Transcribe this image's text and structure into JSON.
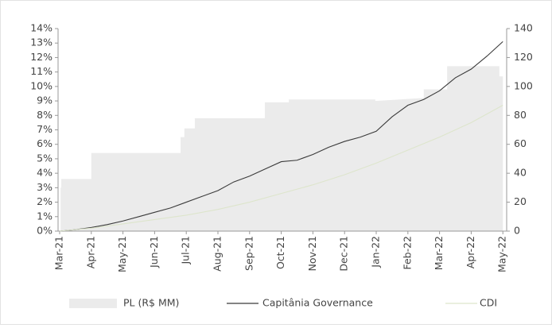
{
  "chart_data": {
    "type": "line",
    "xlim": [
      -0.05,
      14.12
    ],
    "xticks": [
      {
        "value": 0,
        "label": "Mar-21"
      },
      {
        "value": 1,
        "label": "Apr-21"
      },
      {
        "value": 2,
        "label": "May-21"
      },
      {
        "value": 3,
        "label": "Jun-21"
      },
      {
        "value": 4,
        "label": "Jul-21"
      },
      {
        "value": 5,
        "label": "Aug-21"
      },
      {
        "value": 6,
        "label": "Sep-21"
      },
      {
        "value": 7,
        "label": "Oct-21"
      },
      {
        "value": 8,
        "label": "Nov-21"
      },
      {
        "value": 9,
        "label": "Dec-21"
      },
      {
        "value": 10,
        "label": "Jan-22"
      },
      {
        "value": 11,
        "label": "Feb-22"
      },
      {
        "value": 12,
        "label": "Mar-22"
      },
      {
        "value": 13,
        "label": "Apr-22"
      },
      {
        "value": 14,
        "label": "May-22"
      }
    ],
    "ylim": [
      0,
      14
    ],
    "yticks": [
      {
        "value": 0,
        "label": "0%"
      },
      {
        "value": 1,
        "label": "1%"
      },
      {
        "value": 2,
        "label": "2%"
      },
      {
        "value": 3,
        "label": "3%"
      },
      {
        "value": 4,
        "label": "4%"
      },
      {
        "value": 5,
        "label": "5%"
      },
      {
        "value": 6,
        "label": "6%"
      },
      {
        "value": 7,
        "label": "7%"
      },
      {
        "value": 8,
        "label": "8%"
      },
      {
        "value": 9,
        "label": "9%"
      },
      {
        "value": 10,
        "label": "10%"
      },
      {
        "value": 11,
        "label": "11%"
      },
      {
        "value": 12,
        "label": "12%"
      },
      {
        "value": 13,
        "label": "13%"
      },
      {
        "value": 14,
        "label": "14%"
      }
    ],
    "y2lim": [
      0,
      140
    ],
    "y2ticks": [
      0,
      20,
      40,
      60,
      80,
      100,
      120,
      140
    ],
    "series": [
      {
        "name": "PL (R$ MM)",
        "kind": "area",
        "axis": "y2",
        "color": "#ebebeb",
        "x": [
          0,
          0.03,
          0.03,
          0.05,
          0.05,
          1.0,
          1.0,
          3.82,
          3.82,
          3.94,
          3.94,
          4.27,
          4.27,
          6.48,
          6.48,
          7.24,
          7.24,
          9.97,
          9.97,
          11.5,
          11.5,
          12.24,
          12.24,
          13.89,
          13.89,
          14
        ],
        "values": [
          0,
          0,
          30,
          30,
          36,
          36,
          54,
          54,
          65,
          65,
          71,
          71,
          78,
          78,
          89,
          89,
          91,
          91,
          90,
          92,
          98,
          98,
          114,
          114,
          107,
          107
        ]
      },
      {
        "name": "Capitânia Governance",
        "kind": "line",
        "color": "#3a3a3a",
        "x": [
          0,
          0.5,
          1,
          1.5,
          2,
          2.5,
          3,
          3.5,
          4,
          4.5,
          5,
          5.5,
          6,
          6.5,
          7,
          7.5,
          8,
          8.5,
          9,
          9.5,
          10,
          10.5,
          11,
          11.5,
          12,
          12.5,
          13,
          13.5,
          14
        ],
        "values": [
          0,
          0.1,
          0.25,
          0.45,
          0.7,
          1.0,
          1.3,
          1.6,
          2.0,
          2.4,
          2.8,
          3.4,
          3.8,
          4.3,
          4.8,
          4.9,
          5.3,
          5.8,
          6.2,
          6.5,
          6.9,
          7.9,
          8.7,
          9.1,
          9.7,
          10.6,
          11.2,
          12.1,
          13.1
        ]
      },
      {
        "name": "CDI",
        "kind": "line",
        "color": "#dde5cc",
        "x": [
          0,
          1,
          2,
          3,
          4,
          5,
          6,
          7,
          8,
          9,
          10,
          11,
          12,
          13,
          14
        ],
        "values": [
          0,
          0.2,
          0.5,
          0.8,
          1.1,
          1.5,
          2.0,
          2.6,
          3.2,
          3.9,
          4.7,
          5.6,
          6.5,
          7.5,
          8.7
        ]
      }
    ]
  }
}
